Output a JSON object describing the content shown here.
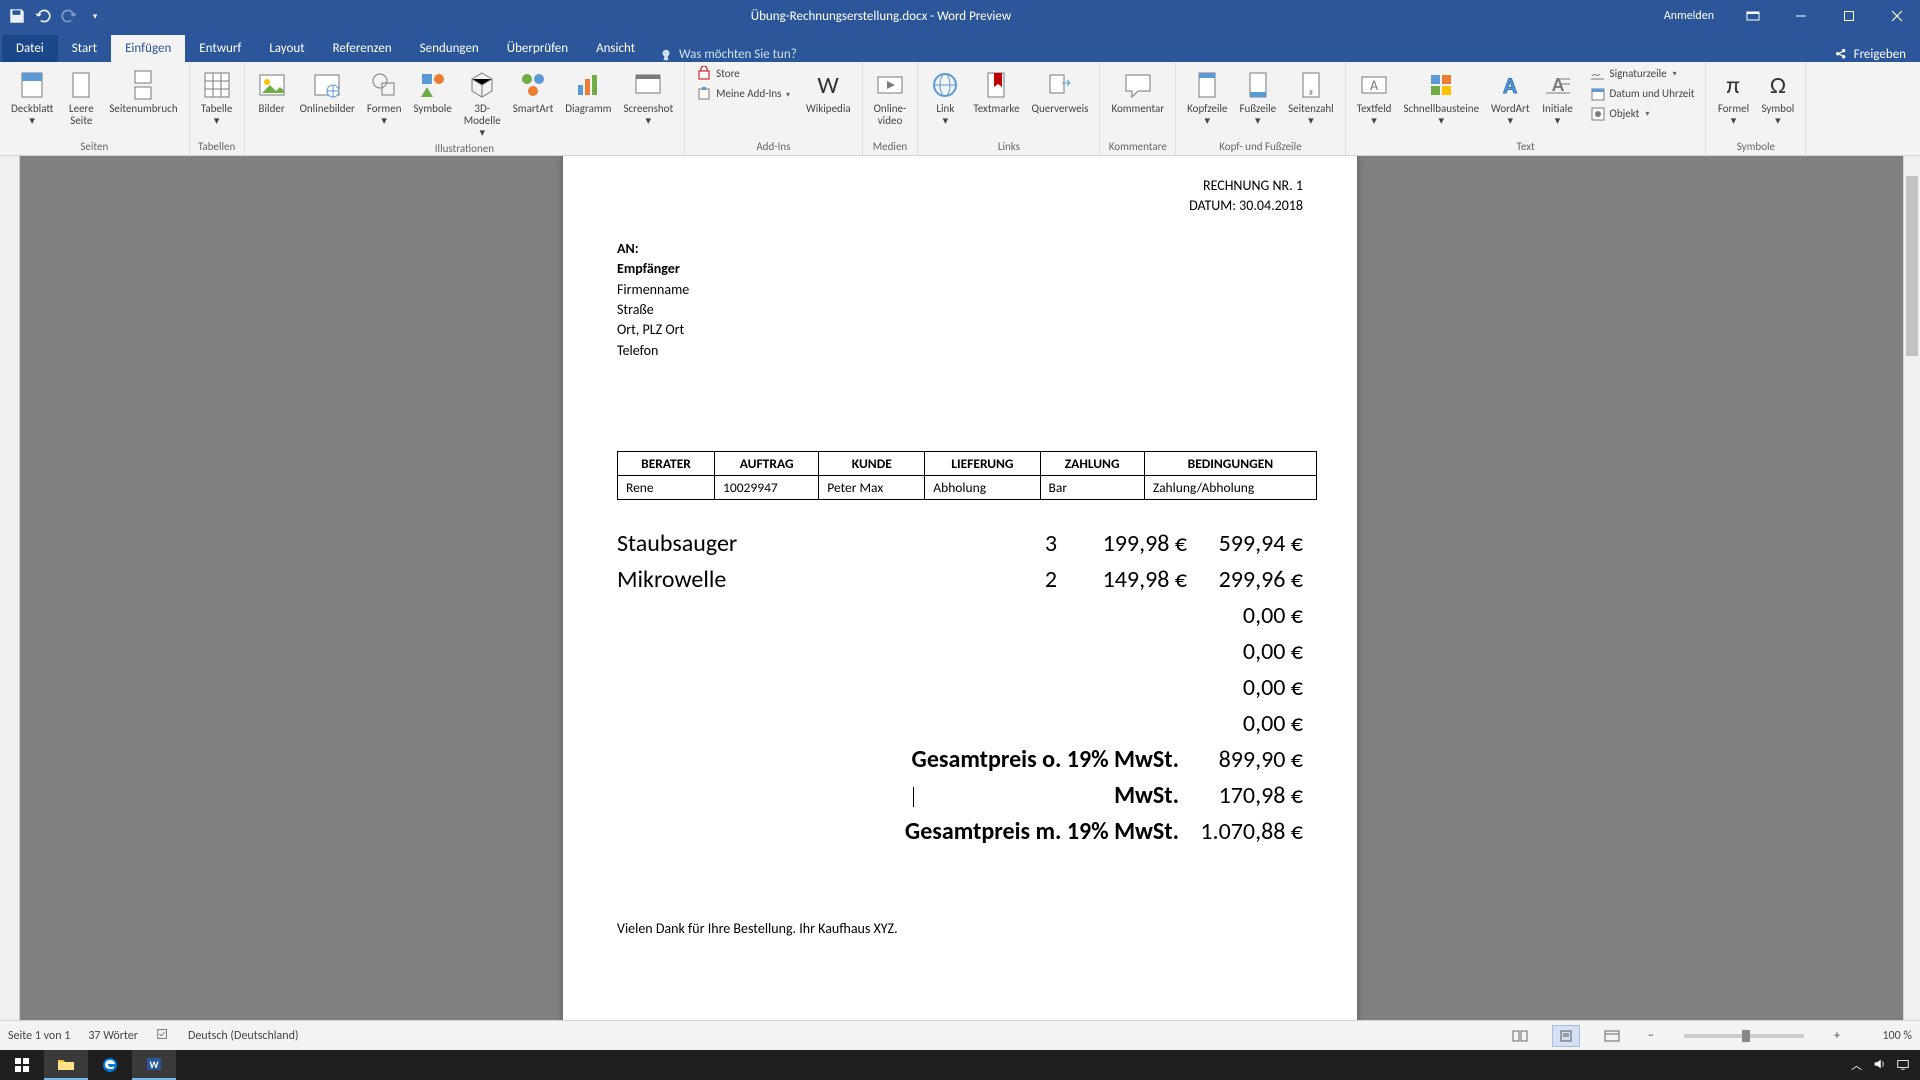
{
  "titlebar": {
    "filename": "Übung-Rechnungserstellung.docx  -  Word Preview",
    "signin": "Anmelden"
  },
  "tabs": {
    "file": "Datei",
    "list": [
      "Start",
      "Einfügen",
      "Entwurf",
      "Layout",
      "Referenzen",
      "Sendungen",
      "Überprüfen",
      "Ansicht"
    ],
    "active_index": 1,
    "tellme_placeholder": "Was möchten Sie tun?",
    "share": "Freigeben"
  },
  "ribbon": {
    "groups": [
      {
        "label": "Seiten",
        "buttons": [
          {
            "name": "deckblatt",
            "label": "Deckblatt",
            "dd": true
          },
          {
            "name": "leere-seite",
            "label": "Leere\nSeite"
          },
          {
            "name": "seitenumbruch",
            "label": "Seitenumbruch"
          }
        ]
      },
      {
        "label": "Tabellen",
        "buttons": [
          {
            "name": "tabelle",
            "label": "Tabelle",
            "dd": true
          }
        ]
      },
      {
        "label": "Illustrationen",
        "buttons": [
          {
            "name": "bilder",
            "label": "Bilder"
          },
          {
            "name": "onlinebilder",
            "label": "Onlinebilder"
          },
          {
            "name": "formen",
            "label": "Formen",
            "dd": true
          },
          {
            "name": "symbole",
            "label": "Symbole"
          },
          {
            "name": "3d-modelle",
            "label": "3D-\nModelle",
            "dd": true
          },
          {
            "name": "smartart",
            "label": "SmartArt"
          },
          {
            "name": "diagramm",
            "label": "Diagramm"
          },
          {
            "name": "screenshot",
            "label": "Screenshot",
            "dd": true
          }
        ]
      },
      {
        "label": "Add-Ins",
        "buttons_small": [
          {
            "name": "store",
            "label": "Store"
          },
          {
            "name": "meine-addins",
            "label": "Meine Add-Ins",
            "dd": true
          }
        ],
        "buttons": [
          {
            "name": "wikipedia",
            "label": "Wikipedia"
          }
        ]
      },
      {
        "label": "Medien",
        "buttons": [
          {
            "name": "onlinevideo",
            "label": "Online-\nvideo"
          }
        ]
      },
      {
        "label": "Links",
        "buttons": [
          {
            "name": "link",
            "label": "Link",
            "dd": true
          },
          {
            "name": "textmarke",
            "label": "Textmarke"
          },
          {
            "name": "querverweis",
            "label": "Querverweis"
          }
        ]
      },
      {
        "label": "Kommentare",
        "buttons": [
          {
            "name": "kommentar",
            "label": "Kommentar"
          }
        ]
      },
      {
        "label": "Kopf- und Fußzeile",
        "buttons": [
          {
            "name": "kopfzeile",
            "label": "Kopfzeile",
            "dd": true
          },
          {
            "name": "fusszeile",
            "label": "Fußzeile",
            "dd": true
          },
          {
            "name": "seitenzahl",
            "label": "Seitenzahl",
            "dd": true
          }
        ]
      },
      {
        "label": "Text",
        "buttons": [
          {
            "name": "textfeld",
            "label": "Textfeld",
            "dd": true
          },
          {
            "name": "schnellbausteine",
            "label": "Schnellbausteine",
            "dd": true
          },
          {
            "name": "wordart",
            "label": "WordArt",
            "dd": true
          },
          {
            "name": "initiale",
            "label": "Initiale",
            "dd": true
          }
        ],
        "buttons_small": [
          {
            "name": "signaturzeile",
            "label": "Signaturzeile",
            "dd": true
          },
          {
            "name": "datum-uhrzeit",
            "label": "Datum und Uhrzeit"
          },
          {
            "name": "objekt",
            "label": "Objekt",
            "dd": true
          }
        ]
      },
      {
        "label": "Symbole",
        "buttons": [
          {
            "name": "formel",
            "label": "Formel",
            "dd": true
          },
          {
            "name": "symbol",
            "label": "Symbol",
            "dd": true
          }
        ]
      }
    ]
  },
  "document": {
    "invoice_no_label": "RECHNUNG NR. 1",
    "date_label": "DATUM: 30.04.2018",
    "addr": {
      "an": "AN:",
      "emp": "Empfänger",
      "firma": "Firmenname",
      "strasse": "Straße",
      "ort": "Ort, PLZ Ort",
      "tel": "Telefon"
    },
    "order_headers": [
      "BERATER",
      "AUFTRAG",
      "KUNDE",
      "LIEFERUNG",
      "ZAHLUNG",
      "BEDINGUNGEN"
    ],
    "order_row": [
      "Rene",
      "10029947",
      "Peter Max",
      "Abholung",
      "Bar",
      "Zahlung/Abholung"
    ],
    "items": [
      {
        "desc": "Staubsauger",
        "qty": "3",
        "unit": "199,98 €",
        "total": "599,94 €"
      },
      {
        "desc": "Mikrowelle",
        "qty": "2",
        "unit": "149,98 €",
        "total": "299,96 €"
      },
      {
        "desc": "",
        "qty": "",
        "unit": "",
        "total": "0,00 €"
      },
      {
        "desc": "",
        "qty": "",
        "unit": "",
        "total": "0,00 €"
      },
      {
        "desc": "",
        "qty": "",
        "unit": "",
        "total": "0,00 €"
      },
      {
        "desc": "",
        "qty": "",
        "unit": "",
        "total": "0,00 €"
      }
    ],
    "totals": [
      {
        "label": "Gesamtpreis o. 19% MwSt.",
        "value": "899,90 €",
        "bold": true
      },
      {
        "label": "MwSt.",
        "value": "170,98 €",
        "bold": true
      },
      {
        "label": "Gesamtpreis m. 19% MwSt.",
        "value": "1.070,88 €",
        "bold": true
      }
    ],
    "thanks": "Vielen Dank für Ihre Bestellung. Ihr Kaufhaus XYZ."
  },
  "statusbar": {
    "page": "Seite 1 von 1",
    "words": "37 Wörter",
    "lang": "Deutsch (Deutschland)",
    "zoom": "100 %"
  },
  "colors": {
    "word_blue": "#2b579a",
    "ribbon_bg": "#f3f3f3",
    "doc_bg": "#808080"
  }
}
